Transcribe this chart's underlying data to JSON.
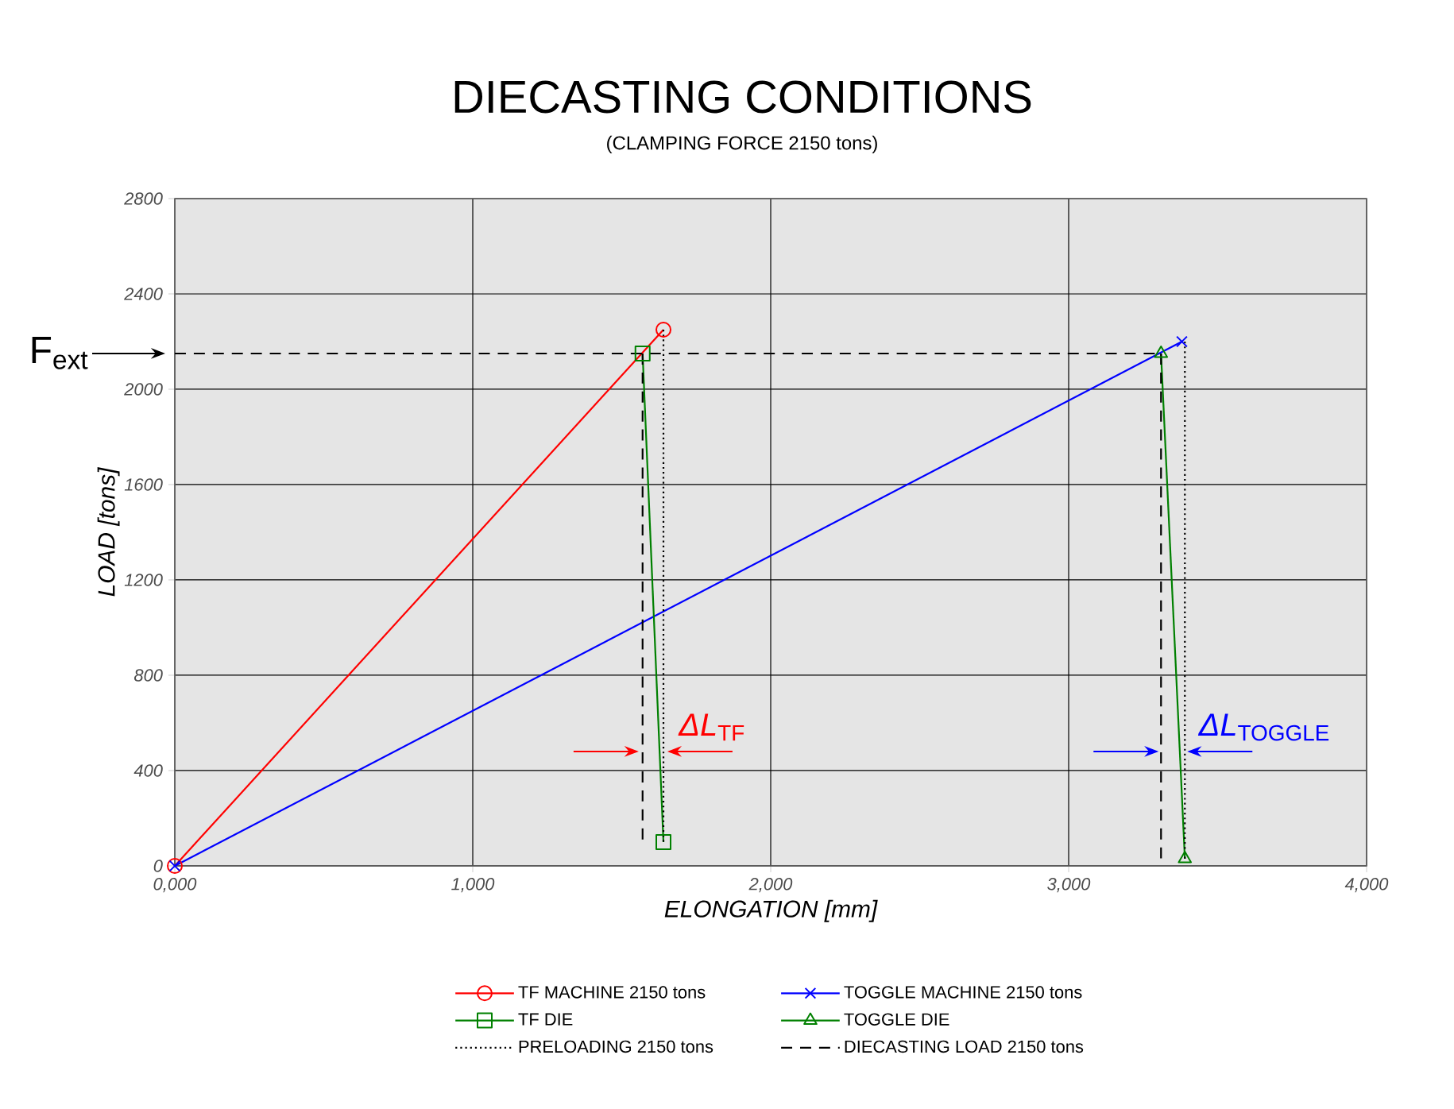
{
  "chart_data": {
    "type": "line",
    "title": "DIECASTING CONDITIONS",
    "subtitle": "(CLAMPING FORCE 2150 tons)",
    "xlabel": "ELONGATION [mm]",
    "ylabel": "LOAD [tons]",
    "xlim": [
      0,
      4000
    ],
    "ylim": [
      0,
      2800
    ],
    "xticks": [
      {
        "value": 0,
        "label": "0,000"
      },
      {
        "value": 1000,
        "label": "1,000"
      },
      {
        "value": 2000,
        "label": "2,000"
      },
      {
        "value": 3000,
        "label": "3,000"
      },
      {
        "value": 4000,
        "label": "4,000"
      }
    ],
    "yticks": [
      0,
      400,
      800,
      1200,
      1600,
      2000,
      2400,
      2800
    ],
    "grid": true,
    "legend": "bottom",
    "series": [
      {
        "name": "TF MACHINE 2150 tons",
        "color": "#ff0000",
        "marker": "circle",
        "line_style": "solid",
        "x": [
          0,
          1640
        ],
        "values": [
          0,
          2250
        ]
      },
      {
        "name": "TOGGLE MACHINE 2150 tons",
        "color": "#0000ff",
        "marker": "cross",
        "line_style": "solid",
        "x": [
          0,
          3380
        ],
        "values": [
          0,
          2200
        ]
      },
      {
        "name": "TF DIE",
        "color": "#008000",
        "marker": "square",
        "line_style": "solid",
        "x": [
          1570,
          1640
        ],
        "values": [
          2150,
          100
        ]
      },
      {
        "name": "TOGGLE DIE",
        "color": "#008000",
        "marker": "triangle",
        "line_style": "solid",
        "x": [
          3310,
          3390
        ],
        "values": [
          2150,
          30
        ]
      },
      {
        "name": "PRELOADING 2150 tons",
        "color": "#000000",
        "marker": "none",
        "line_style": "dotted",
        "x": [
          1640,
          1640,
          null,
          3390,
          3390
        ],
        "values": [
          2250,
          100,
          null,
          2200,
          30
        ]
      },
      {
        "name": "DIECASTING LOAD 2150 tons",
        "color": "#000000",
        "marker": "none",
        "line_style": "dashed",
        "x": [
          0,
          3310,
          null,
          1570,
          1570,
          null,
          3310,
          3310
        ],
        "values": [
          2150,
          2150,
          null,
          2150,
          100,
          null,
          2150,
          30
        ]
      }
    ],
    "annotations": [
      {
        "text": "F$_{ext}$",
        "x": 0,
        "y": 2150
      },
      {
        "text": "*ΔL*$_{TF}$",
        "x": 1605,
        "y": 480
      },
      {
        "text": "*ΔL*$_{TOGGLE}$",
        "x": 3350,
        "y": 480
      }
    ]
  }
}
